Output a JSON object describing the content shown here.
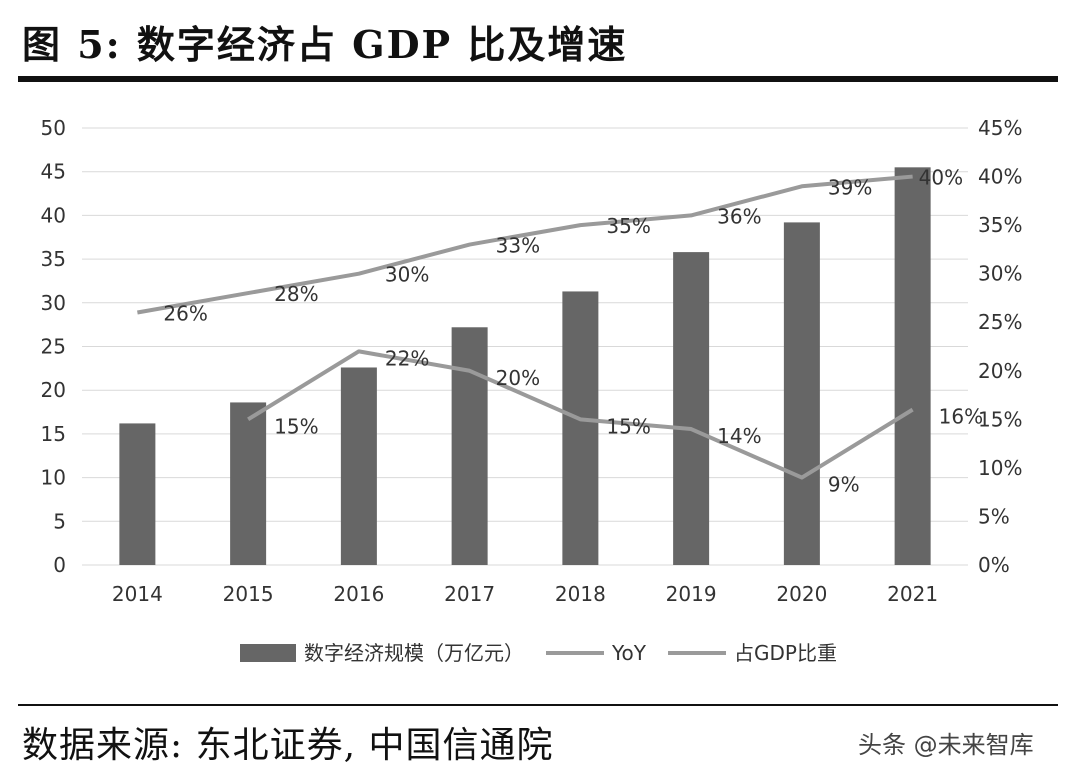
{
  "header": {
    "title": "图 5: 数字经济占 GDP 比及增速"
  },
  "footer": {
    "source": "数据来源: 东北证券, 中国信通院",
    "watermark": "头条 @未来智库"
  },
  "colors": {
    "bar": "#666666",
    "line": "#9a9a9a",
    "grid": "#d9d9d9",
    "text": "#333333"
  },
  "chart_data": {
    "type": "bar",
    "categories": [
      "2014",
      "2015",
      "2016",
      "2017",
      "2018",
      "2019",
      "2020",
      "2021"
    ],
    "ylim_left": [
      0,
      50
    ],
    "yticks_left": [
      "0",
      "5",
      "10",
      "15",
      "20",
      "25",
      "30",
      "35",
      "40",
      "45",
      "50"
    ],
    "ylim_right": [
      0,
      45
    ],
    "yticks_right": [
      "0%",
      "5%",
      "10%",
      "15%",
      "20%",
      "25%",
      "30%",
      "35%",
      "40%",
      "45%"
    ],
    "grid": true,
    "legend_position": "bottom",
    "series": [
      {
        "name": "数字经济规模（万亿元）",
        "kind": "bar",
        "axis": "left",
        "values": [
          16.2,
          18.6,
          22.6,
          27.2,
          31.3,
          35.8,
          39.2,
          45.5
        ]
      },
      {
        "name": "YoY",
        "kind": "line",
        "axis": "right",
        "values": [
          null,
          15,
          22,
          20,
          15,
          14,
          9,
          16
        ],
        "labels": [
          "",
          "15%",
          "22%",
          "20%",
          "15%",
          "14%",
          "9%",
          "16%"
        ]
      },
      {
        "name": "占GDP比重",
        "kind": "line",
        "axis": "right",
        "values": [
          26,
          28,
          30,
          33,
          35,
          36,
          39,
          40
        ],
        "labels": [
          "26%",
          "28%",
          "30%",
          "33%",
          "35%",
          "36%",
          "39%",
          "40%"
        ]
      }
    ]
  }
}
